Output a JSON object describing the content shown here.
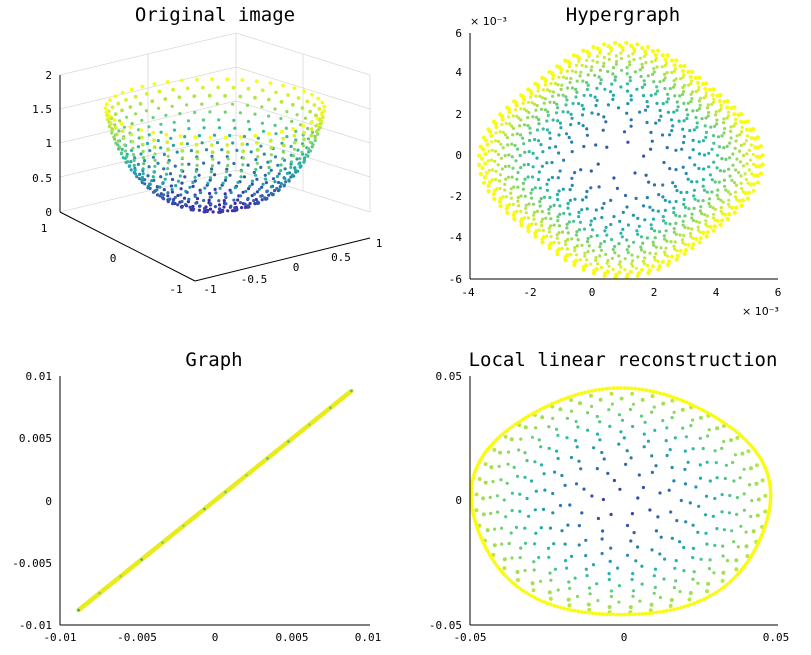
{
  "colors": {
    "low": "#3e26a8",
    "mid": "#1fb5ac",
    "high": "#f9fb15",
    "line": "#e9ec1a"
  },
  "chart_data": [
    {
      "type": "scatter",
      "title": "Original image",
      "xlabel": "",
      "ylabel": "",
      "zlabel": "",
      "xlim": [
        -1,
        1
      ],
      "ylim": [
        -1,
        1
      ],
      "zlim": [
        0,
        2
      ],
      "xticks": [
        "-1",
        "-0.5",
        "0",
        "0.5",
        "1"
      ],
      "yticks": [
        "1",
        "0",
        "-1"
      ],
      "zticks": [
        "0",
        "0.5",
        "1",
        "1.5",
        "2"
      ],
      "grid": true
    },
    {
      "type": "scatter",
      "title": "Hypergraph",
      "xlabel": "",
      "ylabel": "",
      "xlim": [
        -4,
        6
      ],
      "ylim": [
        -6,
        6
      ],
      "xticks": [
        "-4",
        "-2",
        "0",
        "2",
        "4",
        "6"
      ],
      "yticks": [
        "6",
        "4",
        "2",
        "0",
        "-2",
        "-4",
        "-6"
      ],
      "x_multiplier": "× 10⁻³",
      "y_multiplier": "× 10⁻³",
      "grid": false
    },
    {
      "type": "line",
      "title": "Graph",
      "xlabel": "",
      "ylabel": "",
      "xlim": [
        -0.01,
        0.01
      ],
      "ylim": [
        -0.01,
        0.01
      ],
      "xticks": [
        "-0.01",
        "-0.005",
        "0",
        "0.005",
        "0.01"
      ],
      "yticks": [
        "0.01",
        "0.005",
        "0",
        "-0.005",
        "-0.01"
      ],
      "x": [
        -0.0088,
        0.0088
      ],
      "y": [
        -0.0088,
        0.0088
      ],
      "grid": false
    },
    {
      "type": "scatter",
      "title": "Local linear reconstruction",
      "xlabel": "",
      "ylabel": "",
      "xlim": [
        -0.05,
        0.05
      ],
      "ylim": [
        -0.05,
        0.05
      ],
      "xticks": [
        "-0.05",
        "0",
        "0.05"
      ],
      "yticks": [
        "0.05",
        "0",
        "-0.05"
      ],
      "grid": false
    }
  ]
}
